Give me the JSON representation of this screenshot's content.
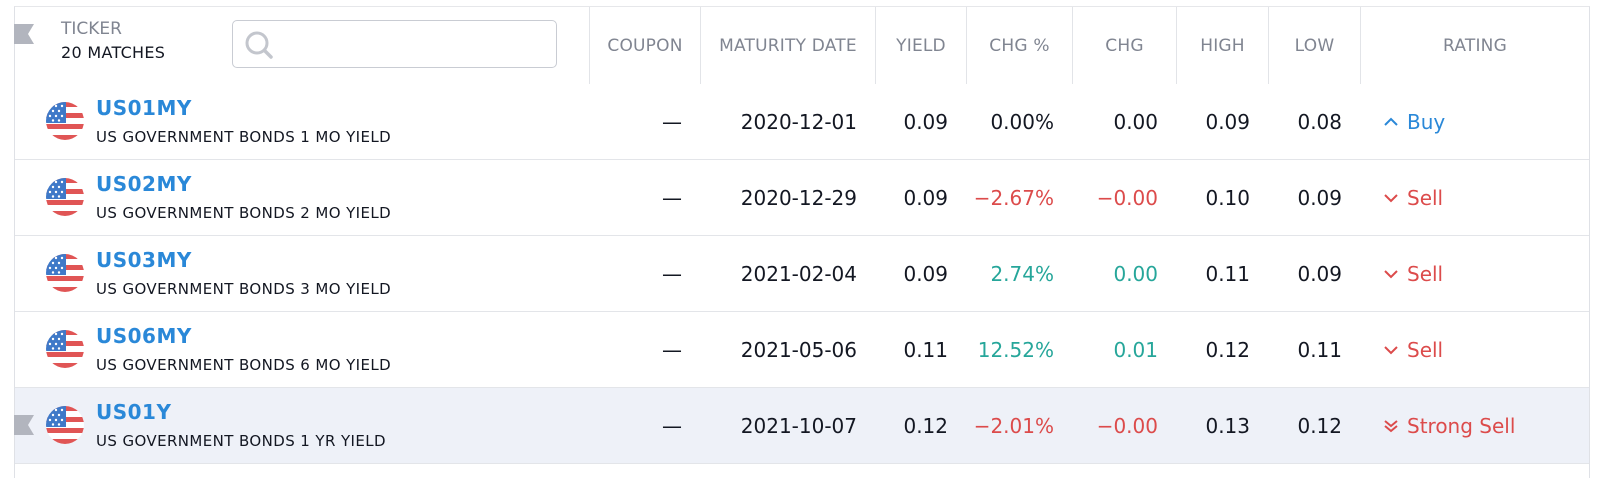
{
  "header": {
    "ticker_label": "TICKER",
    "matches": "20 MATCHES",
    "search_placeholder": "",
    "columns": [
      "COUPON",
      "MATURITY DATE",
      "YIELD",
      "CHG %",
      "CHG",
      "HIGH",
      "LOW",
      "RATING"
    ]
  },
  "rows": [
    {
      "symbol": "US01MY",
      "name": "US GOVERNMENT BONDS 1 MO YIELD",
      "coupon": "—",
      "maturity": "2020-12-01",
      "yield": "0.09",
      "chg_pct": "0.00%",
      "chg": "0.00",
      "high": "0.09",
      "low": "0.08",
      "rating": "Buy",
      "rating_icon": "chevron-up-icon",
      "trend": "neutral"
    },
    {
      "symbol": "US02MY",
      "name": "US GOVERNMENT BONDS 2 MO YIELD",
      "coupon": "—",
      "maturity": "2020-12-29",
      "yield": "0.09",
      "chg_pct": "−2.67%",
      "chg": "−0.00",
      "high": "0.10",
      "low": "0.09",
      "rating": "Sell",
      "rating_icon": "chevron-down-icon",
      "trend": "negative"
    },
    {
      "symbol": "US03MY",
      "name": "US GOVERNMENT BONDS 3 MO YIELD",
      "coupon": "—",
      "maturity": "2021-02-04",
      "yield": "0.09",
      "chg_pct": "2.74%",
      "chg": "0.00",
      "high": "0.11",
      "low": "0.09",
      "rating": "Sell",
      "rating_icon": "chevron-down-icon",
      "trend": "positive"
    },
    {
      "symbol": "US06MY",
      "name": "US GOVERNMENT BONDS 6 MO YIELD",
      "coupon": "—",
      "maturity": "2021-05-06",
      "yield": "0.11",
      "chg_pct": "12.52%",
      "chg": "0.01",
      "high": "0.12",
      "low": "0.11",
      "rating": "Sell",
      "rating_icon": "chevron-down-icon",
      "trend": "positive"
    },
    {
      "symbol": "US01Y",
      "name": "US GOVERNMENT BONDS 1 YR YIELD",
      "coupon": "—",
      "maturity": "2021-10-07",
      "yield": "0.12",
      "chg_pct": "−2.01%",
      "chg": "−0.00",
      "high": "0.13",
      "low": "0.12",
      "rating": "Strong Sell",
      "rating_icon": "double-chevron-down-icon",
      "trend": "negative"
    }
  ],
  "colors": {
    "link": "#2a88d8",
    "negative": "#dc4b4b",
    "positive": "#26a69a",
    "selected_row": "#eef1f8"
  }
}
